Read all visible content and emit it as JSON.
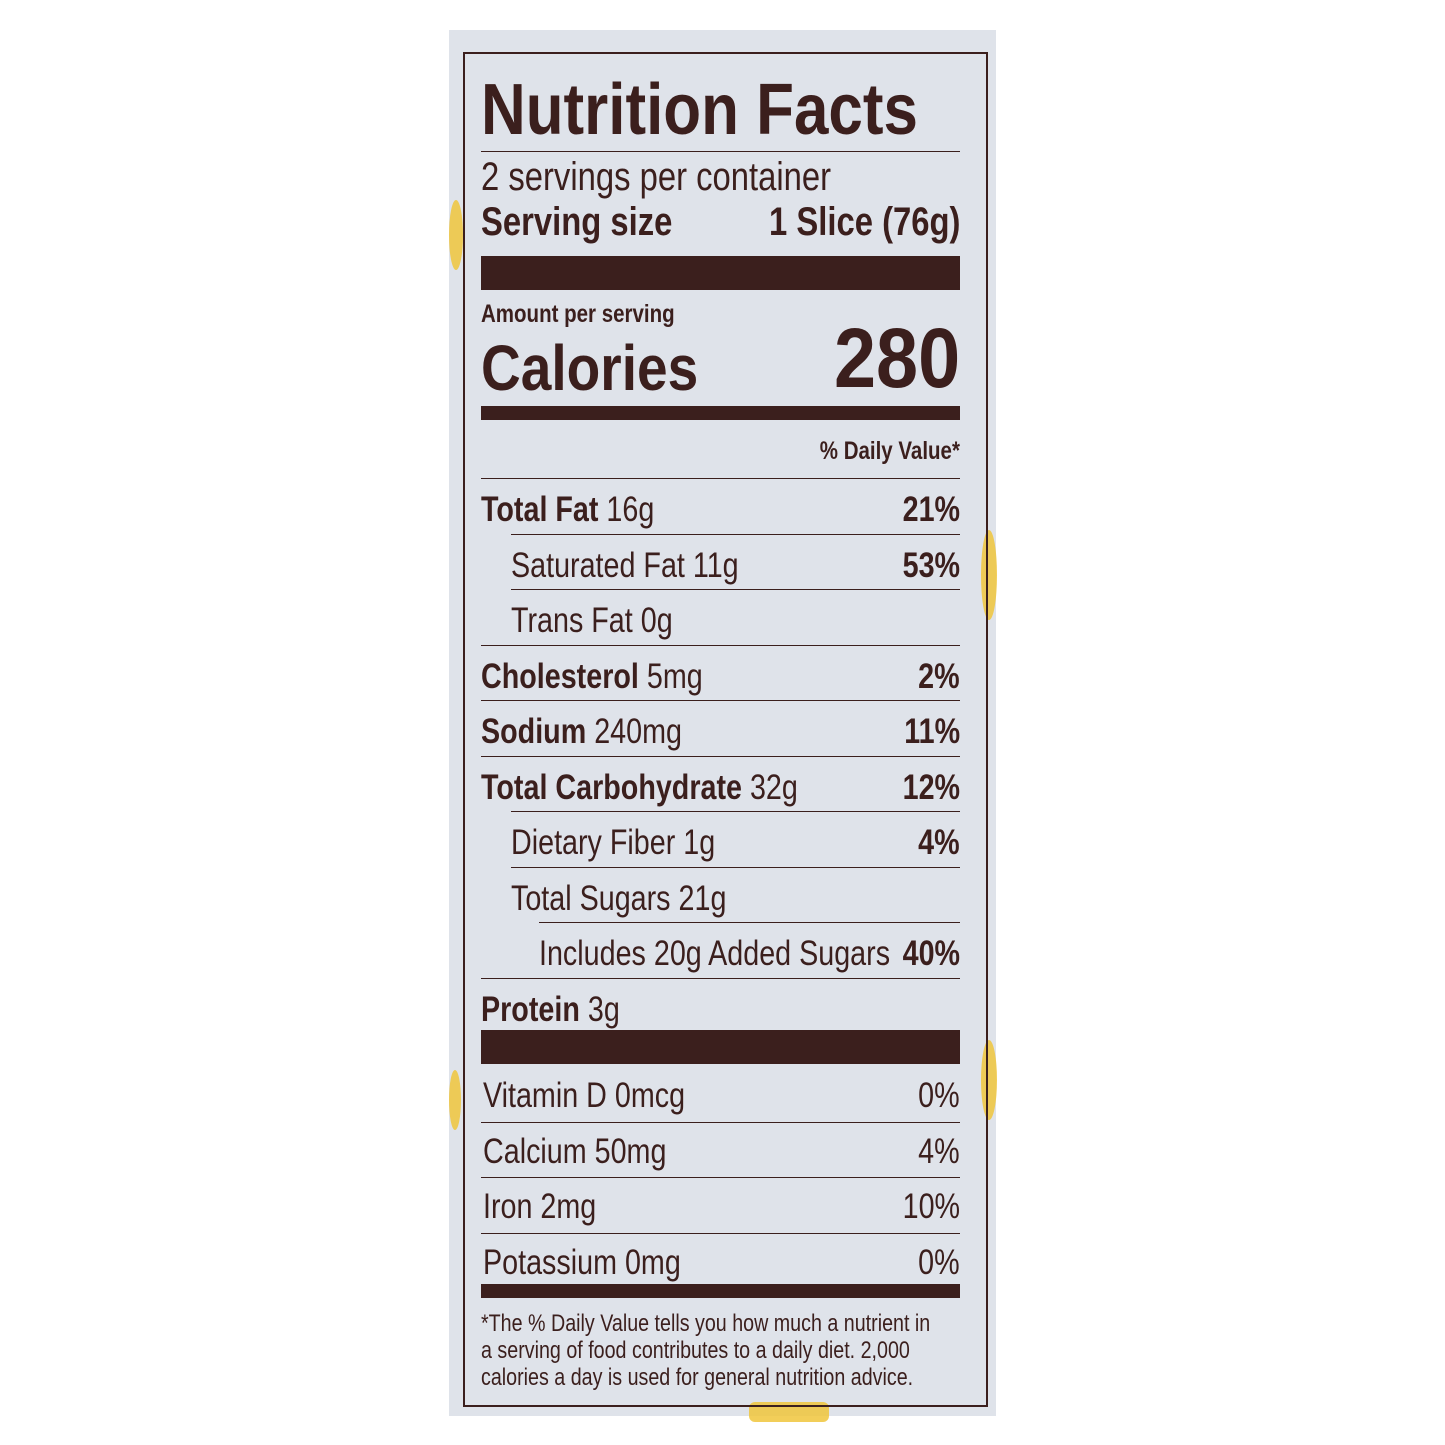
{
  "title": "Nutrition Facts",
  "servings_per_container": "2 servings per container",
  "serving_size_label": "Serving size",
  "serving_size_value": "1 Slice (76g)",
  "amount_per_serving": "Amount per serving",
  "calories_label": "Calories",
  "calories_value": "280",
  "daily_value_header": "% Daily Value*",
  "nutrients": [
    {
      "name": "Total Fat",
      "amount": "16g",
      "dv": "21%"
    },
    {
      "name": "Saturated Fat",
      "amount": "11g",
      "dv": "53%"
    },
    {
      "name": "Trans Fat",
      "amount": "0g",
      "dv": ""
    },
    {
      "name": "Cholesterol",
      "amount": "5mg",
      "dv": "2%"
    },
    {
      "name": "Sodium",
      "amount": "240mg",
      "dv": "11%"
    },
    {
      "name": "Total Carbohydrate",
      "amount": "32g",
      "dv": "12%"
    },
    {
      "name": "Dietary Fiber",
      "amount": "1g",
      "dv": "4%"
    },
    {
      "name": "Total Sugars",
      "amount": "21g",
      "dv": ""
    },
    {
      "name": "Includes 20g Added Sugars",
      "amount": "",
      "dv": "40%"
    },
    {
      "name": "Protein",
      "amount": "3g",
      "dv": ""
    }
  ],
  "vitamins": [
    {
      "name": "Vitamin D 0mcg",
      "dv": "0%"
    },
    {
      "name": "Calcium 50mg",
      "dv": "4%"
    },
    {
      "name": "Iron 2mg",
      "dv": "10%"
    },
    {
      "name": "Potassium 0mg",
      "dv": "0%"
    }
  ],
  "footnote": "*The % Daily Value tells you how much a nutrient in a serving of food contributes to a daily diet. 2,000 calories a day is used for general nutrition advice.",
  "colors": {
    "ink": "#3b1f1d",
    "background": "#dfe3ea",
    "accent": "#f0c63c"
  }
}
